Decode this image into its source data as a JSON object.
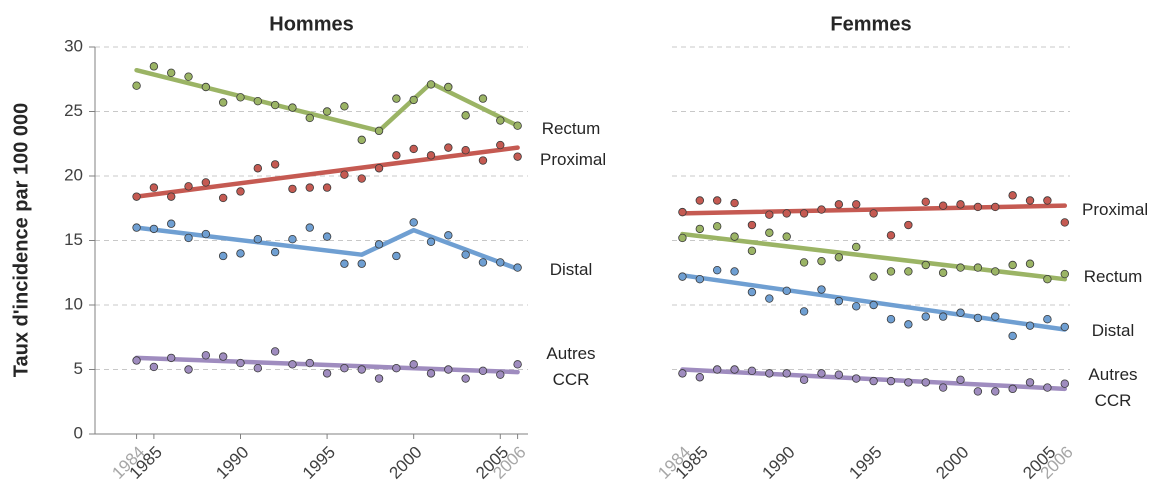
{
  "chart_data": [
    {
      "type": "line",
      "title": "Hommes",
      "ylabel": "Taux d'incidence par 100 000",
      "x": [
        1984,
        1985,
        1986,
        1987,
        1988,
        1989,
        1990,
        1991,
        1992,
        1993,
        1994,
        1995,
        1996,
        1997,
        1998,
        1999,
        2000,
        2001,
        2002,
        2003,
        2004,
        2005,
        2006
      ],
      "xlim": [
        1981.6,
        2006.6
      ],
      "xticks": [
        1984,
        1985,
        1990,
        1995,
        2000,
        2005,
        2006
      ],
      "xtick_colors": [
        "#a6a6a6",
        "#404040",
        "#404040",
        "#404040",
        "#404040",
        "#404040",
        "#a6a6a6"
      ],
      "ylim": [
        0,
        30
      ],
      "yticks": [
        0,
        5,
        10,
        15,
        20,
        25,
        30
      ],
      "grid": true,
      "show_yticklabels": true,
      "series": [
        {
          "name": "Rectum",
          "color": "#9bb465",
          "values": [
            27.0,
            28.5,
            28.0,
            27.7,
            26.9,
            25.7,
            26.1,
            25.8,
            25.5,
            25.3,
            24.5,
            25.0,
            25.4,
            22.8,
            23.5,
            26.0,
            25.9,
            27.1,
            26.9,
            24.7,
            26.0,
            24.3,
            23.9
          ],
          "trend": {
            "x": [
              1984,
              1998,
              2001,
              2006
            ],
            "values": [
              28.2,
              23.5,
              27.2,
              23.9
            ]
          }
        },
        {
          "name": "Proximal",
          "color": "#c55a52",
          "values": [
            18.4,
            19.1,
            18.4,
            19.2,
            19.5,
            18.3,
            18.8,
            20.6,
            20.9,
            19.0,
            19.1,
            19.1,
            20.1,
            19.8,
            20.6,
            21.6,
            22.1,
            21.6,
            22.2,
            22.0,
            21.2,
            22.4,
            21.5
          ],
          "trend": {
            "x": [
              1984,
              2006
            ],
            "values": [
              18.4,
              22.2
            ]
          }
        },
        {
          "name": "Distal",
          "color": "#6f9fd2",
          "values": [
            16.0,
            15.9,
            16.3,
            15.2,
            15.5,
            13.8,
            14.0,
            15.1,
            14.1,
            15.1,
            16.0,
            15.3,
            13.2,
            13.2,
            14.7,
            13.8,
            16.4,
            14.9,
            15.4,
            13.9,
            13.3,
            13.3,
            12.9
          ],
          "trend": {
            "x": [
              1984,
              1997,
              2000,
              2006
            ],
            "values": [
              16.0,
              13.9,
              15.8,
              12.8
            ]
          }
        },
        {
          "name": "Autres CCR",
          "color": "#9f8cbf",
          "values": [
            5.7,
            5.2,
            5.9,
            5.0,
            6.1,
            6.0,
            5.5,
            5.1,
            6.4,
            5.4,
            5.5,
            4.7,
            5.1,
            5.0,
            4.3,
            5.1,
            5.4,
            4.7,
            5.0,
            4.3,
            4.9,
            4.6,
            5.4
          ],
          "trend": {
            "x": [
              1984,
              2006
            ],
            "values": [
              5.9,
              4.8
            ]
          }
        }
      ]
    },
    {
      "type": "line",
      "title": "Femmes",
      "x": [
        1984,
        1985,
        1986,
        1987,
        1988,
        1989,
        1990,
        1991,
        1992,
        1993,
        1994,
        1995,
        1996,
        1997,
        1998,
        1999,
        2000,
        2001,
        2002,
        2003,
        2004,
        2005,
        2006
      ],
      "xlim": [
        1983.4,
        2006.3
      ],
      "xticks": [
        1984,
        1985,
        1990,
        1995,
        2000,
        2005,
        2006
      ],
      "xtick_colors": [
        "#a6a6a6",
        "#404040",
        "#404040",
        "#404040",
        "#404040",
        "#404040",
        "#a6a6a6"
      ],
      "ylim": [
        0,
        30
      ],
      "yticks": [
        0,
        5,
        10,
        15,
        20,
        25,
        30
      ],
      "grid": true,
      "show_yticklabels": false,
      "series": [
        {
          "name": "Proximal",
          "color": "#c55a52",
          "values": [
            17.2,
            18.1,
            18.1,
            17.9,
            16.2,
            17.0,
            17.1,
            17.1,
            17.4,
            17.8,
            17.8,
            17.1,
            15.4,
            16.2,
            18.0,
            17.7,
            17.8,
            17.6,
            17.6,
            18.5,
            18.1,
            18.1,
            16.4
          ],
          "trend": {
            "x": [
              1984,
              2006
            ],
            "values": [
              17.1,
              17.7
            ]
          }
        },
        {
          "name": "Rectum",
          "color": "#9bb465",
          "values": [
            15.2,
            15.9,
            16.1,
            15.3,
            14.2,
            15.6,
            15.3,
            13.3,
            13.4,
            13.7,
            14.5,
            12.2,
            12.6,
            12.6,
            13.1,
            12.5,
            12.9,
            12.9,
            12.6,
            13.1,
            13.2,
            12.0,
            12.4
          ],
          "trend": {
            "x": [
              1984,
              2006
            ],
            "values": [
              15.5,
              12.0
            ]
          }
        },
        {
          "name": "Distal",
          "color": "#6f9fd2",
          "values": [
            12.2,
            12.0,
            12.7,
            12.6,
            11.0,
            10.5,
            11.1,
            9.5,
            11.2,
            10.3,
            9.9,
            10.0,
            8.9,
            8.5,
            9.1,
            9.1,
            9.4,
            9.0,
            9.1,
            7.6,
            8.4,
            8.9,
            8.3
          ],
          "trend": {
            "x": [
              1984,
              2006
            ],
            "values": [
              12.3,
              8.1
            ]
          }
        },
        {
          "name": "Autres CCR",
          "color": "#9f8cbf",
          "values": [
            4.7,
            4.4,
            5.0,
            5.0,
            4.9,
            4.7,
            4.7,
            4.2,
            4.7,
            4.6,
            4.3,
            4.1,
            4.1,
            4.0,
            4.0,
            3.6,
            4.2,
            3.3,
            3.3,
            3.5,
            4.0,
            3.6,
            3.9
          ],
          "trend": {
            "x": [
              1984,
              2006
            ],
            "values": [
              5.0,
              3.5
            ]
          }
        }
      ]
    }
  ]
}
